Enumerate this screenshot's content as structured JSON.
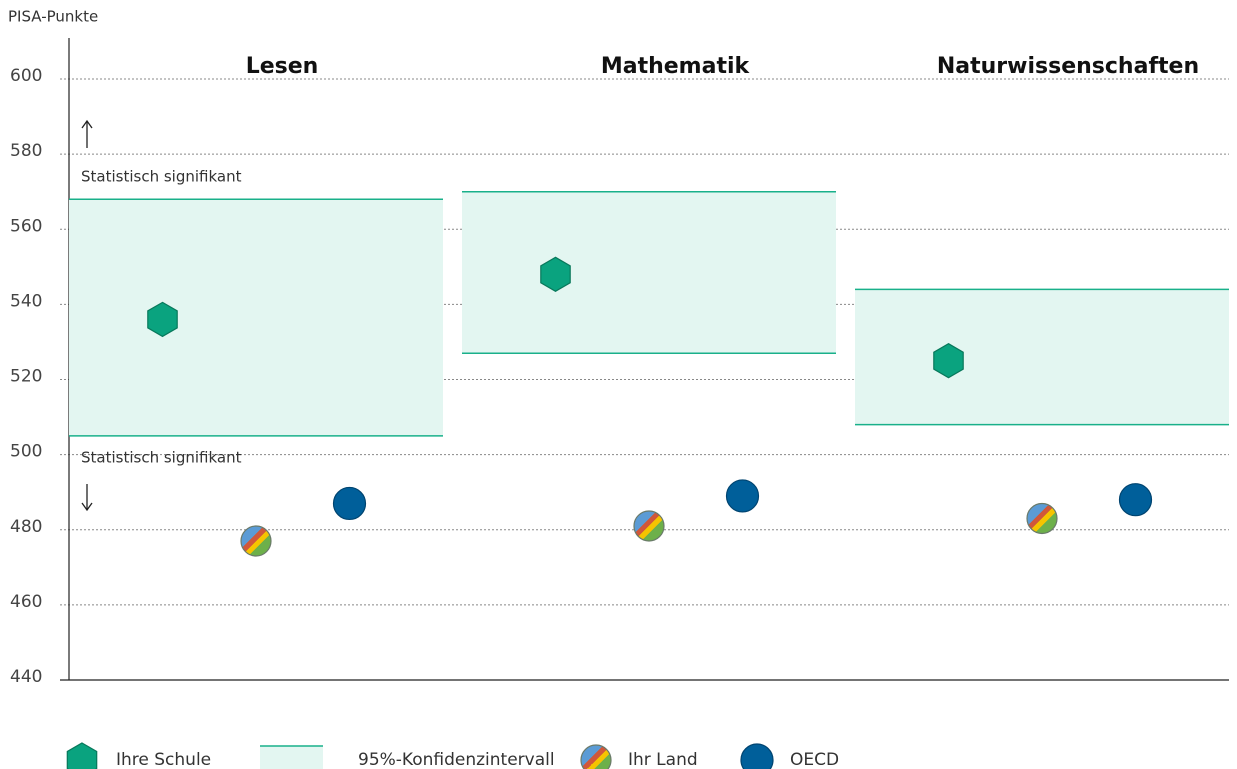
{
  "chart_data": {
    "type": "dot",
    "y_label": "PISA-Punkte",
    "categories": [
      "Lesen",
      "Mathematik",
      "Naturwissenschaften"
    ],
    "intervals": {
      "name": "95%-Konfidenzintervall",
      "color": "#19b08a",
      "fill": "#e3f6f1",
      "lower": [
        505,
        527,
        508
      ],
      "upper": [
        568,
        570,
        544
      ]
    },
    "series": [
      {
        "name": "Ihre Schule",
        "color": "#0aa37f",
        "marker": "hexagon",
        "values": [
          536,
          548,
          525
        ]
      },
      {
        "name": "Ihr Land",
        "color": "striped",
        "marker": "circle",
        "values": [
          477,
          481,
          483
        ]
      },
      {
        "name": "OECD",
        "color": "#005f9a",
        "marker": "circle",
        "values": [
          487,
          489,
          488
        ]
      }
    ],
    "annotations": [
      "Statistisch signifikant",
      "Statistisch signifikant"
    ],
    "ylim": [
      440,
      600
    ],
    "yticks": [
      440,
      460,
      480,
      500,
      520,
      540,
      560,
      580,
      600
    ],
    "grid": true
  }
}
